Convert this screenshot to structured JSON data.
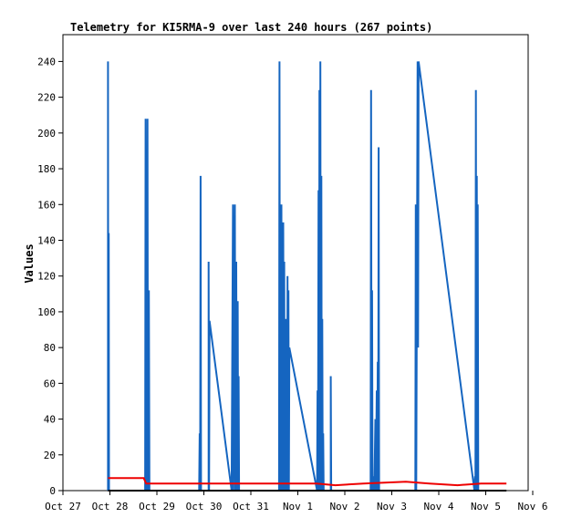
{
  "chart_data": {
    "type": "line",
    "title": "Telemetry for KI5RMA-9 over last 240 hours (267 points)",
    "xlabel": "",
    "ylabel": "Values",
    "ylim": [
      0,
      255
    ],
    "yticks": [
      0,
      20,
      40,
      60,
      80,
      100,
      120,
      140,
      160,
      180,
      200,
      220,
      240
    ],
    "xlim": [
      "2023-10-27",
      "2023-11-06"
    ],
    "xticks": [
      "Oct 27",
      "Oct 28",
      "Oct 29",
      "Oct 30",
      "Oct 31",
      "Nov 1",
      "Nov 2",
      "Nov 3",
      "Nov 4",
      "Nov 5",
      "Nov 6"
    ],
    "grid": false,
    "legend": "none",
    "colors": {
      "series_blue": "#1565c0",
      "series_red": "#ee0000",
      "series_black": "#000000",
      "axis": "#000000"
    },
    "series": [
      {
        "color": "#1565c0",
        "points": [
          [
            0.96,
            0
          ],
          [
            0.96,
            240
          ],
          [
            0.965,
            0
          ],
          [
            0.975,
            144
          ],
          [
            0.98,
            0
          ],
          [
            1.75,
            0
          ],
          [
            1.76,
            208
          ],
          [
            1.77,
            0
          ],
          [
            1.78,
            112
          ],
          [
            1.79,
            0
          ],
          [
            1.8,
            208
          ],
          [
            1.81,
            0
          ],
          [
            1.83,
            112
          ],
          [
            1.84,
            0
          ],
          [
            2.9,
            0
          ],
          [
            2.91,
            32
          ],
          [
            2.92,
            0
          ],
          [
            2.93,
            176
          ],
          [
            2.94,
            0
          ],
          [
            3.1,
            0
          ],
          [
            3.1,
            128
          ],
          [
            3.11,
            0
          ],
          [
            3.12,
            95
          ],
          [
            3.59,
            0
          ],
          [
            3.62,
            160
          ],
          [
            3.63,
            0
          ],
          [
            3.66,
            160
          ],
          [
            3.67,
            0
          ],
          [
            3.69,
            128
          ],
          [
            3.7,
            0
          ],
          [
            3.72,
            106
          ],
          [
            3.73,
            0
          ],
          [
            3.74,
            64
          ],
          [
            3.75,
            0
          ],
          [
            4.6,
            0
          ],
          [
            4.61,
            240
          ],
          [
            4.62,
            0
          ],
          [
            4.63,
            72
          ],
          [
            4.64,
            0
          ],
          [
            4.65,
            160
          ],
          [
            4.66,
            48
          ],
          [
            4.67,
            120
          ],
          [
            4.68,
            0
          ],
          [
            4.69,
            150
          ],
          [
            4.7,
            0
          ],
          [
            4.71,
            128
          ],
          [
            4.72,
            0
          ],
          [
            4.74,
            96
          ],
          [
            4.75,
            0
          ],
          [
            4.76,
            64
          ],
          [
            4.77,
            0
          ],
          [
            4.78,
            120
          ],
          [
            4.79,
            0
          ],
          [
            4.8,
            112
          ],
          [
            4.81,
            0
          ],
          [
            4.82,
            80
          ],
          [
            5.41,
            0
          ],
          [
            5.42,
            56
          ],
          [
            5.43,
            0
          ],
          [
            5.44,
            168
          ],
          [
            5.45,
            0
          ],
          [
            5.46,
            224
          ],
          [
            5.47,
            0
          ],
          [
            5.48,
            240
          ],
          [
            5.49,
            0
          ],
          [
            5.5,
            176
          ],
          [
            5.51,
            0
          ],
          [
            5.52,
            96
          ],
          [
            5.53,
            0
          ],
          [
            5.54,
            32
          ],
          [
            5.55,
            0
          ],
          [
            5.7,
            0
          ],
          [
            5.7,
            64
          ],
          [
            5.71,
            0
          ],
          [
            6.55,
            0
          ],
          [
            6.56,
            224
          ],
          [
            6.57,
            0
          ],
          [
            6.58,
            112
          ],
          [
            6.59,
            0
          ],
          [
            6.62,
            8
          ],
          [
            6.63,
            0
          ],
          [
            6.65,
            40
          ],
          [
            6.66,
            0
          ],
          [
            6.68,
            56
          ],
          [
            6.69,
            0
          ],
          [
            6.7,
            72
          ],
          [
            6.71,
            0
          ],
          [
            6.72,
            192
          ],
          [
            6.73,
            0
          ],
          [
            7.5,
            0
          ],
          [
            7.51,
            160
          ],
          [
            7.52,
            0
          ],
          [
            7.55,
            240
          ],
          [
            7.56,
            80
          ],
          [
            7.57,
            240
          ],
          [
            8.76,
            0
          ],
          [
            8.77,
            8
          ],
          [
            8.78,
            0
          ],
          [
            8.79,
            224
          ],
          [
            8.8,
            0
          ],
          [
            8.81,
            176
          ],
          [
            8.82,
            0
          ],
          [
            8.83,
            160
          ],
          [
            8.84,
            0
          ]
        ]
      },
      {
        "color": "#ee0000",
        "points": [
          [
            0.96,
            7
          ],
          [
            1.72,
            7
          ],
          [
            1.77,
            4
          ],
          [
            3.75,
            4
          ],
          [
            5.4,
            4
          ],
          [
            5.8,
            3
          ],
          [
            6.4,
            4
          ],
          [
            7.3,
            5
          ],
          [
            7.8,
            4
          ],
          [
            8.4,
            3
          ],
          [
            8.9,
            4
          ],
          [
            9.44,
            4
          ]
        ]
      },
      {
        "color": "#000000",
        "points": [
          [
            0.96,
            0
          ],
          [
            9.44,
            0
          ]
        ]
      }
    ]
  }
}
